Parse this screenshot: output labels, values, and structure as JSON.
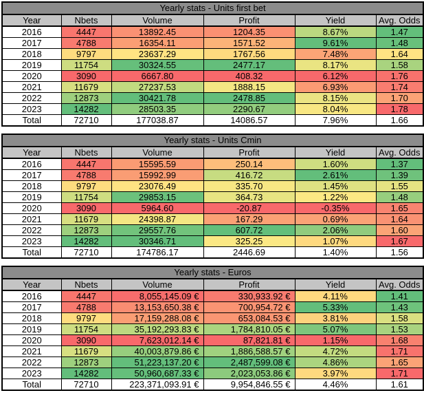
{
  "colors": {
    "title_bg": "#8C8C8C",
    "header_bg": "#C4C4C4",
    "border": "#000000",
    "scale_min_red": "#F8696B",
    "scale_mid_yellow": "#FFEB84",
    "scale_max_green": "#63BE7B"
  },
  "columns": [
    "Year",
    "Nbets",
    "Volume",
    "Profit",
    "Yield",
    "Avg. Odds"
  ],
  "column_keys": [
    "year",
    "nbets",
    "volume",
    "profit",
    "yield",
    "avg-odds"
  ],
  "tables": [
    {
      "title": "Yearly stats - Units first bet",
      "right_align_cols": [],
      "rows": [
        {
          "cells": [
            {
              "v": "2016",
              "c": "#FFFFFF"
            },
            {
              "v": "4447",
              "c": "#F8766E"
            },
            {
              "v": "13892.45",
              "c": "#FA9173"
            },
            {
              "v": "1204.35",
              "c": "#FA9072"
            },
            {
              "v": "8.67%",
              "c": "#BBD880"
            },
            {
              "v": "1.47",
              "c": "#63BE7B"
            }
          ]
        },
        {
          "cells": [
            {
              "v": "2017",
              "c": "#FFFFFF"
            },
            {
              "v": "4788",
              "c": "#F87B6F"
            },
            {
              "v": "16354.11",
              "c": "#FB9E74"
            },
            {
              "v": "1571.52",
              "c": "#FCB378"
            },
            {
              "v": "9.61%",
              "c": "#63BE7B"
            },
            {
              "v": "1.48",
              "c": "#68C07B"
            }
          ]
        },
        {
          "cells": [
            {
              "v": "2018",
              "c": "#FFFFFF"
            },
            {
              "v": "9797",
              "c": "#FEDC7F"
            },
            {
              "v": "23637.29",
              "c": "#FFE483"
            },
            {
              "v": "1767.56",
              "c": "#FEDA7F"
            },
            {
              "v": "7.48%",
              "c": "#FBA476"
            },
            {
              "v": "1.64",
              "c": "#FFE383"
            }
          ]
        },
        {
          "cells": [
            {
              "v": "2019",
              "c": "#FFFFFF"
            },
            {
              "v": "11754",
              "c": "#CEDD81"
            },
            {
              "v": "30324.55",
              "c": "#66BF7B"
            },
            {
              "v": "2477.17",
              "c": "#64BE7B"
            },
            {
              "v": "8.17%",
              "c": "#EAE482"
            },
            {
              "v": "1.58",
              "c": "#A9D37F"
            }
          ]
        },
        {
          "cells": [
            {
              "v": "2020",
              "c": "#FFFFFF"
            },
            {
              "v": "3090",
              "c": "#F8696B"
            },
            {
              "v": "6667.80",
              "c": "#F8696B"
            },
            {
              "v": "408.32",
              "c": "#F8696B"
            },
            {
              "v": "6.12%",
              "c": "#F8696B"
            },
            {
              "v": "1.76",
              "c": "#F8726D"
            }
          ]
        },
        {
          "cells": [
            {
              "v": "2021",
              "c": "#FFFFFF"
            },
            {
              "v": "11679",
              "c": "#D7DF81"
            },
            {
              "v": "27237.53",
              "c": "#C2DA80"
            },
            {
              "v": "1888.15",
              "c": "#F4E683"
            },
            {
              "v": "6.93%",
              "c": "#FB9B74"
            },
            {
              "v": "1.74",
              "c": "#F97D70"
            }
          ]
        },
        {
          "cells": [
            {
              "v": "2022",
              "c": "#FFFFFF"
            },
            {
              "v": "12873",
              "c": "#9ED07E"
            },
            {
              "v": "30421.78",
              "c": "#63BE7B"
            },
            {
              "v": "2478.85",
              "c": "#63BE7B"
            },
            {
              "v": "8.15%",
              "c": "#EBE483"
            },
            {
              "v": "1.70",
              "c": "#FBA376"
            }
          ]
        },
        {
          "cells": [
            {
              "v": "2023",
              "c": "#FFFFFF"
            },
            {
              "v": "14282",
              "c": "#63BE7B"
            },
            {
              "v": "28503.35",
              "c": "#90CC7E"
            },
            {
              "v": "2290.67",
              "c": "#93CD7E"
            },
            {
              "v": "8.04%",
              "c": "#F8E783"
            },
            {
              "v": "1.78",
              "c": "#F8696B"
            }
          ]
        },
        {
          "total": true,
          "cells": [
            {
              "v": "Total",
              "c": "#FFFFFF"
            },
            {
              "v": "72710",
              "c": "#FFFFFF"
            },
            {
              "v": "177038.87",
              "c": "#FFFFFF"
            },
            {
              "v": "14086.57",
              "c": "#FFFFFF"
            },
            {
              "v": "7.96%",
              "c": "#FFFFFF"
            },
            {
              "v": "1.66",
              "c": "#FFFFFF"
            }
          ]
        }
      ]
    },
    {
      "title": "Yearly stats - Units Cmin",
      "right_align_cols": [],
      "rows": [
        {
          "cells": [
            {
              "v": "2016",
              "c": "#FFFFFF"
            },
            {
              "v": "4447",
              "c": "#F8766E"
            },
            {
              "v": "15595.59",
              "c": "#FA9B73"
            },
            {
              "v": "250.14",
              "c": "#FDBE7B"
            },
            {
              "v": "1.60%",
              "c": "#CEDD81"
            },
            {
              "v": "1.37",
              "c": "#63BE7B"
            }
          ]
        },
        {
          "cells": [
            {
              "v": "2017",
              "c": "#FFFFFF"
            },
            {
              "v": "4788",
              "c": "#F87B6F"
            },
            {
              "v": "15992.99",
              "c": "#FA9D74"
            },
            {
              "v": "416.72",
              "c": "#C7DC81"
            },
            {
              "v": "2.61%",
              "c": "#63BE7B"
            },
            {
              "v": "1.39",
              "c": "#6FC27C"
            }
          ]
        },
        {
          "cells": [
            {
              "v": "2018",
              "c": "#FFFFFF"
            },
            {
              "v": "9797",
              "c": "#FEDC7F"
            },
            {
              "v": "23076.49",
              "c": "#FFE383"
            },
            {
              "v": "335.70",
              "c": "#F7E783"
            },
            {
              "v": "1.45%",
              "c": "#DFE182"
            },
            {
              "v": "1.55",
              "c": "#E5E382"
            }
          ]
        },
        {
          "cells": [
            {
              "v": "2019",
              "c": "#FFFFFF"
            },
            {
              "v": "11754",
              "c": "#CEDD81"
            },
            {
              "v": "29853.15",
              "c": "#6CC17C"
            },
            {
              "v": "364.73",
              "c": "#E8E482"
            },
            {
              "v": "1.22%",
              "c": "#FBE884"
            },
            {
              "v": "1.48",
              "c": "#97CE7E"
            }
          ]
        },
        {
          "cells": [
            {
              "v": "2020",
              "c": "#FFFFFF"
            },
            {
              "v": "3090",
              "c": "#F8696B"
            },
            {
              "v": "5964.60",
              "c": "#F8696B"
            },
            {
              "v": "-20.87",
              "c": "#F8696B"
            },
            {
              "v": "-0.35%",
              "c": "#F8696B"
            },
            {
              "v": "1.65",
              "c": "#F98470"
            }
          ]
        },
        {
          "cells": [
            {
              "v": "2021",
              "c": "#FFFFFF"
            },
            {
              "v": "11679",
              "c": "#D7DF81"
            },
            {
              "v": "24398.87",
              "c": "#F4E683"
            },
            {
              "v": "167.29",
              "c": "#FBA175"
            },
            {
              "v": "0.69%",
              "c": "#FBA276"
            },
            {
              "v": "1.64",
              "c": "#FA9273"
            }
          ]
        },
        {
          "cells": [
            {
              "v": "2022",
              "c": "#FFFFFF"
            },
            {
              "v": "12873",
              "c": "#9ED07E"
            },
            {
              "v": "29557.76",
              "c": "#72C37C"
            },
            {
              "v": "607.72",
              "c": "#63BE7B"
            },
            {
              "v": "2.06%",
              "c": "#90CB7E"
            },
            {
              "v": "1.60",
              "c": "#FBA476"
            }
          ]
        },
        {
          "cells": [
            {
              "v": "2023",
              "c": "#FFFFFF"
            },
            {
              "v": "14282",
              "c": "#63BE7B"
            },
            {
              "v": "30346.71",
              "c": "#63BE7B"
            },
            {
              "v": "325.25",
              "c": "#FBE884"
            },
            {
              "v": "1.07%",
              "c": "#FED97F"
            },
            {
              "v": "1.67",
              "c": "#F8696B"
            }
          ]
        },
        {
          "total": true,
          "cells": [
            {
              "v": "Total",
              "c": "#FFFFFF"
            },
            {
              "v": "72710",
              "c": "#FFFFFF"
            },
            {
              "v": "174786.17",
              "c": "#FFFFFF"
            },
            {
              "v": "2446.69",
              "c": "#FFFFFF"
            },
            {
              "v": "1.40%",
              "c": "#FFFFFF"
            },
            {
              "v": "1.56",
              "c": "#FFFFFF"
            }
          ]
        }
      ]
    },
    {
      "title": "Yearly stats - Euros",
      "right_align_cols": [
        2,
        3
      ],
      "rows": [
        {
          "cells": [
            {
              "v": "2016",
              "c": "#FFFFFF"
            },
            {
              "v": "4447",
              "c": "#F8766E"
            },
            {
              "v": "8,055,145.09 €",
              "c": "#F86D6C"
            },
            {
              "v": "330,933.92 €",
              "c": "#F87B6F"
            },
            {
              "v": "4.11%",
              "c": "#FED97F"
            },
            {
              "v": "1.41",
              "c": "#63BE7B"
            }
          ]
        },
        {
          "cells": [
            {
              "v": "2017",
              "c": "#FFFFFF"
            },
            {
              "v": "4788",
              "c": "#F87B6F"
            },
            {
              "v": "13,153,650.38 €",
              "c": "#F98D72"
            },
            {
              "v": "700,954.72 €",
              "c": "#FA9473"
            },
            {
              "v": "5.33%",
              "c": "#63BE7B"
            },
            {
              "v": "1.43",
              "c": "#6EC27C"
            }
          ]
        },
        {
          "cells": [
            {
              "v": "2018",
              "c": "#FFFFFF"
            },
            {
              "v": "9797",
              "c": "#FEDC7F"
            },
            {
              "v": "17,159,288.08 €",
              "c": "#FA9E74"
            },
            {
              "v": "653,084.53 €",
              "c": "#FA9673"
            },
            {
              "v": "3.81%",
              "c": "#FDD27D"
            },
            {
              "v": "1.58",
              "c": "#DAE081"
            }
          ]
        },
        {
          "cells": [
            {
              "v": "2019",
              "c": "#FFFFFF"
            },
            {
              "v": "11754",
              "c": "#CEDD81"
            },
            {
              "v": "35,192,293.83 €",
              "c": "#BCD980"
            },
            {
              "v": "1,784,810.05 €",
              "c": "#ABD47F"
            },
            {
              "v": "5.07%",
              "c": "#7EC67C"
            },
            {
              "v": "1.53",
              "c": "#A9D37F"
            }
          ]
        },
        {
          "cells": [
            {
              "v": "2020",
              "c": "#FFFFFF"
            },
            {
              "v": "3090",
              "c": "#F8696B"
            },
            {
              "v": "7,623,012.14 €",
              "c": "#F8696B"
            },
            {
              "v": "87,821.81 €",
              "c": "#F8696B"
            },
            {
              "v": "1.15%",
              "c": "#F8696B"
            },
            {
              "v": "1.68",
              "c": "#F9816F"
            }
          ]
        },
        {
          "cells": [
            {
              "v": "2021",
              "c": "#FFFFFF"
            },
            {
              "v": "11679",
              "c": "#D7DF81"
            },
            {
              "v": "40,003,879.86 €",
              "c": "#97CE7E"
            },
            {
              "v": "1,886,588.57 €",
              "c": "#A0D17F"
            },
            {
              "v": "4.72%",
              "c": "#C3DB80"
            },
            {
              "v": "1.71",
              "c": "#F8736D"
            }
          ]
        },
        {
          "cells": [
            {
              "v": "2022",
              "c": "#FFFFFF"
            },
            {
              "v": "12873",
              "c": "#9ED07E"
            },
            {
              "v": "51,223,137.20 €",
              "c": "#63BE7B"
            },
            {
              "v": "2,487,599.08 €",
              "c": "#63BE7B"
            },
            {
              "v": "4.86%",
              "c": "#ABD47F"
            },
            {
              "v": "1.65",
              "c": "#FBA376"
            }
          ]
        },
        {
          "cells": [
            {
              "v": "2023",
              "c": "#FFFFFF"
            },
            {
              "v": "14282",
              "c": "#63BE7B"
            },
            {
              "v": "50,960,687.33 €",
              "c": "#65BF7B"
            },
            {
              "v": "2,023,053.86 €",
              "c": "#8CCA7D"
            },
            {
              "v": "3.97%",
              "c": "#FED97F"
            },
            {
              "v": "1.71",
              "c": "#F8696B"
            }
          ]
        },
        {
          "total": true,
          "cells": [
            {
              "v": "Total",
              "c": "#FFFFFF"
            },
            {
              "v": "72710",
              "c": "#FFFFFF"
            },
            {
              "v": "223,371,093.91 €",
              "c": "#FFFFFF"
            },
            {
              "v": "9,954,846.55 €",
              "c": "#FFFFFF"
            },
            {
              "v": "4.46%",
              "c": "#FFFFFF"
            },
            {
              "v": "1.61",
              "c": "#FFFFFF"
            }
          ]
        }
      ]
    }
  ]
}
